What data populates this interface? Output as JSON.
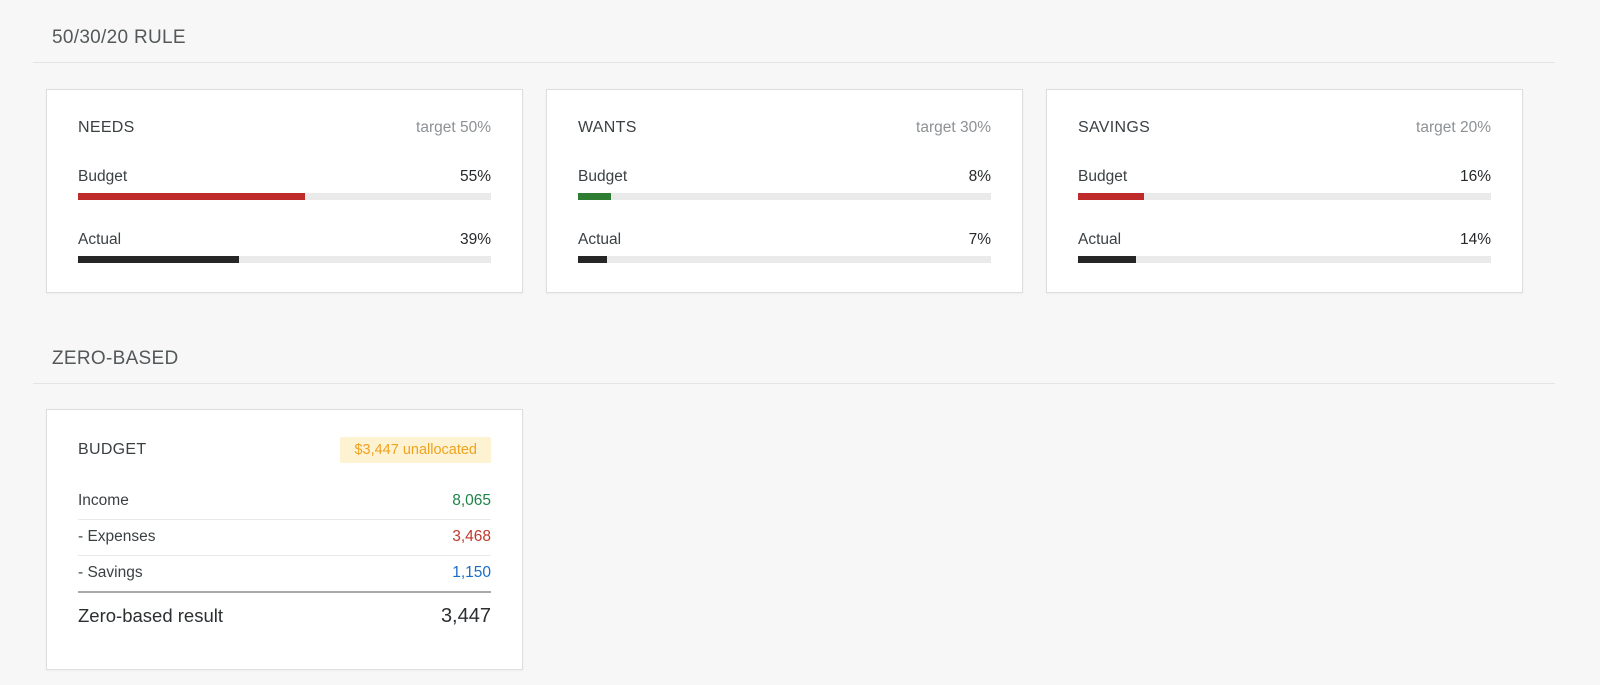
{
  "sections": [
    {
      "title": "50/30/20 RULE"
    },
    {
      "title": "ZERO-BASED"
    }
  ],
  "rule_cards": [
    {
      "name": "NEEDS",
      "target_label": "target 50%",
      "budget_label": "Budget",
      "budget_value": "55%",
      "budget_pct": 55,
      "budget_color": "#bf2a2a",
      "actual_label": "Actual",
      "actual_value": "39%",
      "actual_pct": 39,
      "actual_color": "#262626"
    },
    {
      "name": "WANTS",
      "target_label": "target 30%",
      "budget_label": "Budget",
      "budget_value": "8%",
      "budget_pct": 8,
      "budget_color": "#2e7d32",
      "actual_label": "Actual",
      "actual_value": "7%",
      "actual_pct": 7,
      "actual_color": "#262626"
    },
    {
      "name": "SAVINGS",
      "target_label": "target 20%",
      "budget_label": "Budget",
      "budget_value": "16%",
      "budget_pct": 16,
      "budget_color": "#bf2a2a",
      "actual_label": "Actual",
      "actual_value": "14%",
      "actual_pct": 14,
      "actual_color": "#262626"
    }
  ],
  "zero_based": {
    "card_title": "BUDGET",
    "badge": {
      "text": "$3,447 unallocated",
      "bg": "#fdf3d2",
      "color": "#efa220"
    },
    "rows": [
      {
        "label": "Income",
        "value": "8,065",
        "color": "#1e8449"
      },
      {
        "label": "- Expenses",
        "value": "3,468",
        "color": "#c0392b"
      },
      {
        "label": "- Savings",
        "value": "1,150",
        "color": "#1a6fc4"
      }
    ],
    "result_label": "Zero-based result",
    "result_value": "3,447"
  },
  "colors": {
    "page_bg": "#f7f7f7",
    "card_bg": "#ffffff",
    "track": "#eaeaea",
    "heading": "#54585a"
  }
}
